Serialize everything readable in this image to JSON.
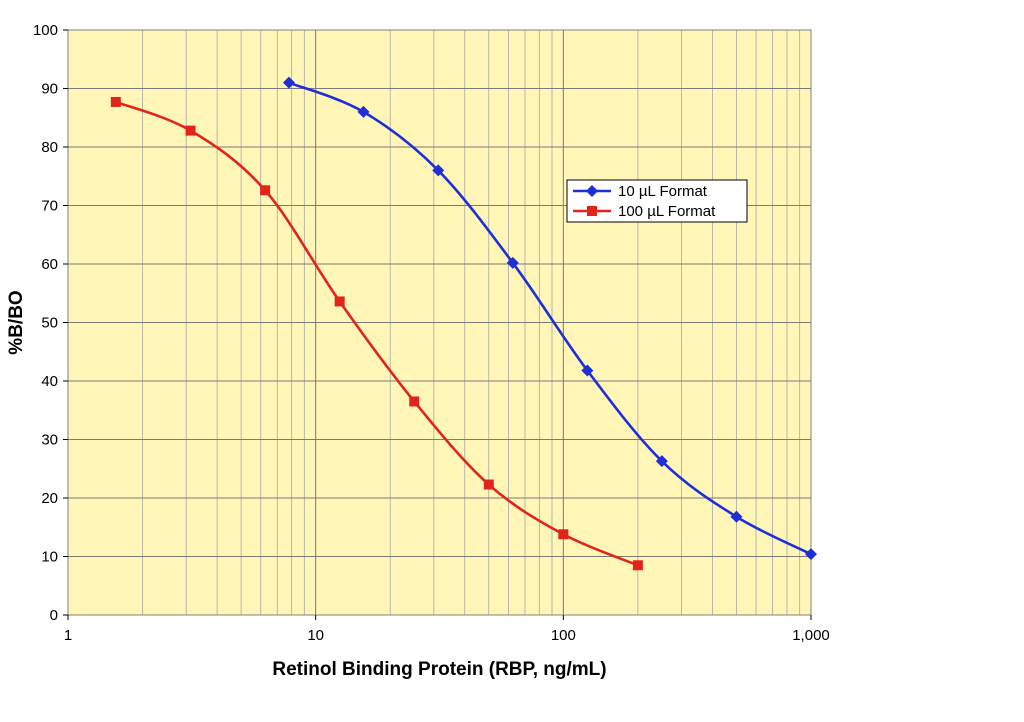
{
  "chart_data": {
    "type": "line",
    "title": "",
    "xlabel": "Retinol Binding Protein (RBP, ng/mL)",
    "ylabel": "%B/BO",
    "x_scale": "log",
    "xlim": [
      1,
      1000
    ],
    "ylim": [
      0,
      100
    ],
    "x_ticks": [
      1,
      10,
      100,
      1000
    ],
    "x_tick_labels": [
      "1",
      "10",
      "100",
      "1,000"
    ],
    "y_ticks": [
      0,
      10,
      20,
      30,
      40,
      50,
      60,
      70,
      80,
      90,
      100
    ],
    "y_tick_labels": [
      "0",
      "10",
      "20",
      "30",
      "40",
      "50",
      "60",
      "70",
      "80",
      "90",
      "100"
    ],
    "grid": true,
    "plot_background": "#FFF6B8",
    "legend_position": "center-right",
    "series": [
      {
        "name": "10 µL Format",
        "color": "#1F2FD8",
        "marker": "diamond",
        "x": [
          7.8,
          15.6,
          31.25,
          62.5,
          125,
          250,
          500,
          1000
        ],
        "y": [
          91,
          86,
          76,
          60.2,
          41.8,
          26.3,
          16.8,
          10.4
        ]
      },
      {
        "name": "100 µL Format",
        "color": "#E3241B",
        "marker": "square",
        "x": [
          1.56,
          3.125,
          6.25,
          12.5,
          25,
          50,
          100,
          200
        ],
        "y": [
          87.7,
          82.8,
          72.6,
          53.6,
          36.5,
          22.3,
          13.8,
          8.5
        ]
      }
    ]
  }
}
